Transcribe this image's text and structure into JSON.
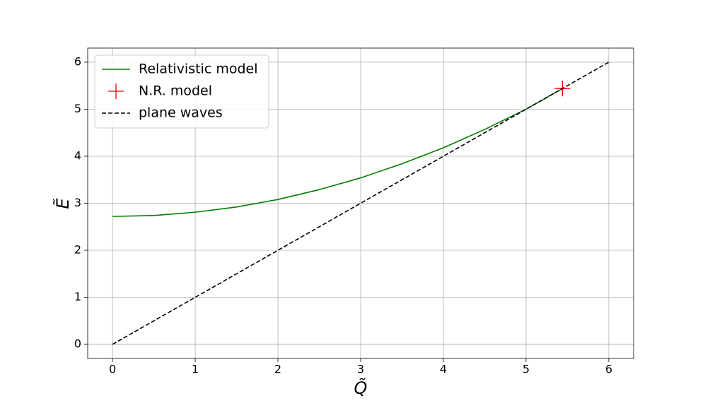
{
  "chart_data": {
    "type": "line",
    "xlabel": "Q̃",
    "ylabel": "Ẽ",
    "xlim": [
      -0.3,
      6.3
    ],
    "ylim": [
      -0.3,
      6.3
    ],
    "xticks": [
      0,
      1,
      2,
      3,
      4,
      5,
      6
    ],
    "yticks": [
      0,
      1,
      2,
      3,
      4,
      5,
      6
    ],
    "grid": true,
    "legend": "upper left",
    "series": [
      {
        "name": "Relativistic model",
        "color": "#008000",
        "style": "solid",
        "x": [
          0,
          0.5,
          1,
          1.5,
          2,
          2.5,
          3,
          3.5,
          4,
          4.5,
          5,
          5.44
        ],
        "values": [
          2.72,
          2.74,
          2.81,
          2.92,
          3.08,
          3.29,
          3.54,
          3.84,
          4.18,
          4.57,
          5.0,
          5.44
        ]
      },
      {
        "name": "N.R. model",
        "color": "#ff0000",
        "style": "marker",
        "x": [
          5.44
        ],
        "values": [
          5.44
        ]
      },
      {
        "name": "plane waves",
        "color": "#000000",
        "style": "dashed",
        "x": [
          0,
          6
        ],
        "values": [
          0,
          6
        ]
      }
    ]
  }
}
